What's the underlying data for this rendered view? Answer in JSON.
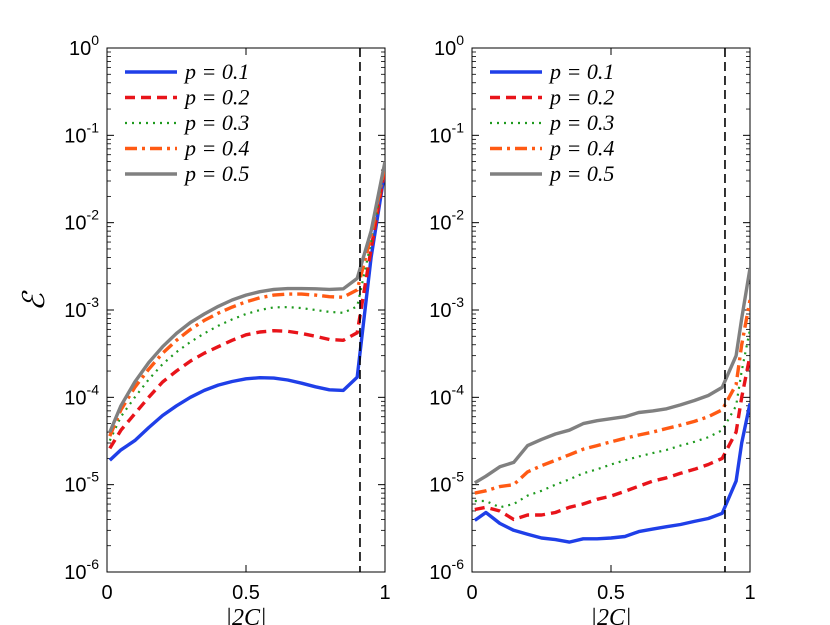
{
  "chart_data": [
    {
      "type": "line",
      "panel": "left",
      "title": "",
      "xlabel": "|2C|",
      "ylabel": "ℰ",
      "xlim": [
        0,
        1
      ],
      "ylim": [
        1e-06,
        1
      ],
      "yscale": "log",
      "xticks": [
        "0",
        "0.5",
        "1"
      ],
      "yticks": [
        "10^0",
        "10^-1",
        "10^-2",
        "10^-3",
        "10^-4",
        "10^-5",
        "10^-6"
      ],
      "vline_x": 0.91,
      "legend_location": "top-left",
      "series": [
        {
          "name": "p = 0.1",
          "color": "#1f3fe8",
          "style": "solid",
          "x": [
            0.01,
            0.05,
            0.1,
            0.15,
            0.2,
            0.25,
            0.3,
            0.35,
            0.4,
            0.45,
            0.5,
            0.55,
            0.6,
            0.65,
            0.7,
            0.75,
            0.8,
            0.85,
            0.9,
            0.95,
            1.0
          ],
          "y": [
            1.9e-05,
            2.5e-05,
            3.2e-05,
            4.5e-05,
            6.2e-05,
            8e-05,
            0.0001,
            0.00012,
            0.000138,
            0.000152,
            0.000163,
            0.000168,
            0.000166,
            0.000158,
            0.000145,
            0.000132,
            0.000122,
            0.00012,
            0.00017,
            0.004,
            0.04
          ]
        },
        {
          "name": "p = 0.2",
          "color": "#e8141a",
          "style": "dashed",
          "x": [
            0.01,
            0.05,
            0.1,
            0.15,
            0.2,
            0.25,
            0.3,
            0.35,
            0.4,
            0.45,
            0.5,
            0.55,
            0.6,
            0.65,
            0.7,
            0.75,
            0.8,
            0.85,
            0.9,
            0.95,
            1.0
          ],
          "y": [
            2.6e-05,
            4.2e-05,
            6.5e-05,
            0.0001,
            0.00015,
            0.0002,
            0.00026,
            0.00032,
            0.00038,
            0.00045,
            0.00052,
            0.00056,
            0.00058,
            0.00057,
            0.00054,
            0.0005,
            0.00046,
            0.00045,
            0.00055,
            0.005,
            0.042
          ]
        },
        {
          "name": "p = 0.3",
          "color": "#1e9a1e",
          "style": "dotted",
          "x": [
            0.01,
            0.05,
            0.1,
            0.15,
            0.2,
            0.25,
            0.3,
            0.35,
            0.4,
            0.45,
            0.5,
            0.55,
            0.6,
            0.65,
            0.7,
            0.75,
            0.8,
            0.85,
            0.9,
            0.95,
            1.0
          ],
          "y": [
            3.2e-05,
            6e-05,
            0.0001,
            0.00016,
            0.00024,
            0.00033,
            0.00043,
            0.00054,
            0.00066,
            0.00078,
            0.0009,
            0.001,
            0.00107,
            0.00108,
            0.00105,
            0.001,
            0.00095,
            0.00093,
            0.0011,
            0.006,
            0.044
          ]
        },
        {
          "name": "p = 0.4",
          "color": "#ff5a14",
          "style": "dashdot",
          "x": [
            0.01,
            0.05,
            0.1,
            0.15,
            0.2,
            0.25,
            0.3,
            0.35,
            0.4,
            0.45,
            0.5,
            0.55,
            0.6,
            0.65,
            0.7,
            0.75,
            0.8,
            0.85,
            0.9,
            0.95,
            1.0
          ],
          "y": [
            3.6e-05,
            7.2e-05,
            0.00013,
            0.00021,
            0.00032,
            0.00045,
            0.0006,
            0.00076,
            0.00092,
            0.00108,
            0.00124,
            0.00138,
            0.00148,
            0.00152,
            0.00152,
            0.00148,
            0.00142,
            0.0014,
            0.0017,
            0.007,
            0.046
          ]
        },
        {
          "name": "p = 0.5",
          "color": "#808080",
          "style": "solid",
          "x": [
            0.01,
            0.05,
            0.1,
            0.15,
            0.2,
            0.25,
            0.3,
            0.35,
            0.4,
            0.45,
            0.5,
            0.55,
            0.6,
            0.65,
            0.7,
            0.75,
            0.8,
            0.85,
            0.9,
            0.95,
            1.0
          ],
          "y": [
            4e-05,
            8e-05,
            0.00015,
            0.00025,
            0.00038,
            0.00054,
            0.00072,
            0.0009,
            0.0011,
            0.0013,
            0.00148,
            0.00162,
            0.00172,
            0.00176,
            0.00176,
            0.00175,
            0.00172,
            0.00175,
            0.0023,
            0.008,
            0.05
          ]
        }
      ]
    },
    {
      "type": "line",
      "panel": "right",
      "title": "",
      "xlabel": "|2C|",
      "ylabel": "",
      "xlim": [
        0,
        1
      ],
      "ylim": [
        1e-06,
        1
      ],
      "yscale": "log",
      "xticks": [
        "0",
        "0.5",
        "1"
      ],
      "yticks": [
        "10^0",
        "10^-1",
        "10^-2",
        "10^-3",
        "10^-4",
        "10^-5",
        "10^-6"
      ],
      "vline_x": 0.91,
      "legend_location": "top-left",
      "series": [
        {
          "name": "p = 0.1",
          "color": "#1f3fe8",
          "style": "solid",
          "x": [
            0.01,
            0.05,
            0.1,
            0.15,
            0.2,
            0.25,
            0.3,
            0.35,
            0.4,
            0.45,
            0.5,
            0.55,
            0.6,
            0.65,
            0.7,
            0.75,
            0.8,
            0.85,
            0.9,
            0.95,
            0.97,
            1.0
          ],
          "y": [
            3.9e-06,
            4.8e-06,
            3.6e-06,
            3e-06,
            2.7e-06,
            2.45e-06,
            2.35e-06,
            2.2e-06,
            2.4e-06,
            2.4e-06,
            2.45e-06,
            2.55e-06,
            2.9e-06,
            3.1e-06,
            3.3e-06,
            3.5e-06,
            3.8e-06,
            4.1e-06,
            4.7e-06,
            1.1e-05,
            3e-05,
            8.5e-05
          ]
        },
        {
          "name": "p = 0.2",
          "color": "#e8141a",
          "style": "dashed",
          "x": [
            0.01,
            0.05,
            0.1,
            0.15,
            0.2,
            0.25,
            0.3,
            0.35,
            0.4,
            0.45,
            0.5,
            0.55,
            0.6,
            0.65,
            0.7,
            0.75,
            0.8,
            0.85,
            0.9,
            0.95,
            0.97,
            1.0
          ],
          "y": [
            5.2e-06,
            5.5e-06,
            5e-06,
            4e-06,
            4.5e-06,
            4.5e-06,
            4.8e-06,
            5.5e-06,
            6e-06,
            6.8e-06,
            7.4e-06,
            8.4e-06,
            9.6e-06,
            1.1e-05,
            1.2e-05,
            1.35e-05,
            1.5e-05,
            1.7e-05,
            2e-05,
            4e-05,
            0.0001,
            0.0003
          ]
        },
        {
          "name": "p = 0.3",
          "color": "#1e9a1e",
          "style": "dotted",
          "x": [
            0.01,
            0.05,
            0.1,
            0.15,
            0.2,
            0.25,
            0.3,
            0.35,
            0.4,
            0.45,
            0.5,
            0.55,
            0.6,
            0.65,
            0.7,
            0.75,
            0.8,
            0.85,
            0.9,
            0.95,
            0.97,
            1.0
          ],
          "y": [
            6.5e-06,
            6.5e-06,
            5.5e-06,
            6e-06,
            7.5e-06,
            8.5e-06,
            1e-05,
            1.15e-05,
            1.35e-05,
            1.5e-05,
            1.7e-05,
            1.9e-05,
            2.1e-05,
            2.3e-05,
            2.5e-05,
            2.8e-05,
            3.1e-05,
            3.5e-05,
            4.2e-05,
            8e-05,
            0.0002,
            0.0006
          ]
        },
        {
          "name": "p = 0.4",
          "color": "#ff5a14",
          "style": "dashdot",
          "x": [
            0.01,
            0.05,
            0.1,
            0.15,
            0.2,
            0.25,
            0.3,
            0.35,
            0.4,
            0.45,
            0.5,
            0.55,
            0.6,
            0.65,
            0.7,
            0.75,
            0.8,
            0.85,
            0.9,
            0.95,
            0.97,
            1.0
          ],
          "y": [
            8e-06,
            8.5e-06,
            9.5e-06,
            1e-05,
            1.4e-05,
            1.65e-05,
            1.9e-05,
            2.2e-05,
            2.55e-05,
            2.8e-05,
            3.1e-05,
            3.4e-05,
            3.7e-05,
            4e-05,
            4.4e-05,
            4.8e-05,
            5.3e-05,
            6e-05,
            7.2e-05,
            0.00014,
            0.0004,
            0.0013
          ]
        },
        {
          "name": "p = 0.5",
          "color": "#808080",
          "style": "solid",
          "x": [
            0.01,
            0.05,
            0.1,
            0.15,
            0.2,
            0.25,
            0.3,
            0.35,
            0.4,
            0.45,
            0.5,
            0.55,
            0.6,
            0.65,
            0.7,
            0.75,
            0.8,
            0.85,
            0.9,
            0.95,
            0.97,
            1.0
          ],
          "y": [
            1.05e-05,
            1.25e-05,
            1.6e-05,
            1.8e-05,
            2.8e-05,
            3.3e-05,
            3.8e-05,
            4.2e-05,
            5e-05,
            5.4e-05,
            5.7e-05,
            6e-05,
            6.7e-05,
            7e-05,
            7.4e-05,
            8.2e-05,
            9.2e-05,
            0.000105,
            0.00013,
            0.0003,
            0.0008,
            0.003
          ]
        }
      ]
    }
  ]
}
